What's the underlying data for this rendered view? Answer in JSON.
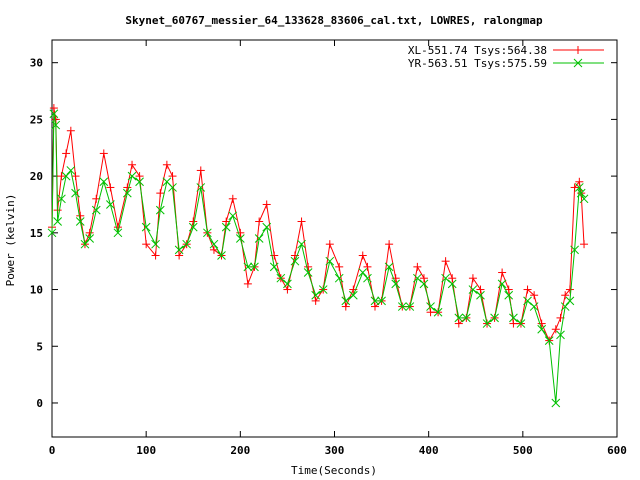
{
  "chart_data": {
    "type": "line",
    "title": "Skynet_60767_messier_64_133628_83606_cal.txt, LOWRES, ralongmap",
    "xlabel": "Time(Seconds)",
    "ylabel": "Power (kelvin)",
    "xlim": [
      0,
      600
    ],
    "ylim": [
      -3,
      32
    ],
    "xticks": [
      0,
      100,
      200,
      300,
      400,
      500,
      600
    ],
    "yticks": [
      0,
      5,
      10,
      15,
      20,
      25,
      30
    ],
    "grid": false,
    "legend_position": "top-right",
    "series": [
      {
        "name": "XL-551.74 Tsys:564.38",
        "color": "#ff0000",
        "marker": "+",
        "x": [
          0,
          2,
          4,
          6,
          10,
          15,
          20,
          25,
          30,
          35,
          40,
          47,
          55,
          62,
          70,
          80,
          85,
          93,
          100,
          110,
          115,
          122,
          128,
          135,
          143,
          150,
          158,
          165,
          172,
          180,
          185,
          192,
          200,
          208,
          215,
          220,
          228,
          236,
          243,
          250,
          258,
          265,
          272,
          280,
          288,
          295,
          305,
          312,
          320,
          330,
          335,
          343,
          350,
          358,
          365,
          372,
          380,
          388,
          395,
          402,
          410,
          418,
          425,
          432,
          440,
          447,
          455,
          462,
          470,
          478,
          485,
          490,
          498,
          505,
          512,
          520,
          528,
          535,
          540,
          545,
          550,
          555,
          560,
          562,
          565
        ],
        "values": [
          15.5,
          26,
          25,
          17,
          20,
          22,
          24,
          20,
          16.5,
          14,
          15,
          18,
          22,
          19,
          15.5,
          19,
          21,
          20,
          14,
          13,
          18.5,
          21,
          20,
          13,
          14,
          16,
          20.5,
          15,
          13.5,
          13,
          16,
          18,
          15,
          10.5,
          12,
          16,
          17.5,
          13,
          11,
          10,
          13,
          16,
          12,
          9,
          10,
          14,
          12,
          8.5,
          10,
          13,
          12,
          8.5,
          9,
          14,
          11,
          8.5,
          8.5,
          12,
          11,
          8,
          8,
          12.5,
          11,
          7,
          7.5,
          11,
          10,
          7,
          7.5,
          11.5,
          10,
          7,
          7,
          10,
          9.5,
          7,
          5.5,
          6.5,
          7.5,
          9.5,
          10,
          19,
          19.5,
          18.5,
          14
        ]
      },
      {
        "name": "YR-563.51 Tsys:575.59",
        "color": "#00c000",
        "marker": "x",
        "x": [
          0,
          2,
          4,
          6,
          10,
          15,
          20,
          25,
          30,
          35,
          40,
          47,
          55,
          62,
          70,
          80,
          85,
          93,
          100,
          110,
          115,
          122,
          128,
          135,
          143,
          150,
          158,
          165,
          172,
          180,
          185,
          192,
          200,
          208,
          215,
          220,
          228,
          236,
          243,
          250,
          258,
          265,
          272,
          280,
          288,
          295,
          305,
          312,
          320,
          330,
          335,
          343,
          350,
          358,
          365,
          372,
          380,
          388,
          395,
          402,
          410,
          418,
          425,
          432,
          440,
          447,
          455,
          462,
          470,
          478,
          485,
          490,
          498,
          505,
          512,
          520,
          528,
          535,
          540,
          545,
          550,
          555,
          560,
          562,
          565
        ],
        "values": [
          15,
          25.5,
          24.5,
          16,
          18,
          20,
          20.5,
          18.5,
          16,
          14,
          14.5,
          17,
          19.5,
          17.5,
          15,
          18.5,
          20,
          19.5,
          15.5,
          14,
          17,
          19.5,
          19,
          13.5,
          14,
          15.5,
          19,
          15,
          14,
          13,
          15.5,
          16.5,
          14.5,
          12,
          12,
          14.5,
          15.5,
          12,
          11,
          10.5,
          12.5,
          14,
          11.5,
          9.5,
          10,
          12.5,
          11,
          9,
          9.5,
          11.5,
          11,
          9,
          9,
          12,
          10.5,
          8.5,
          8.5,
          11,
          10.5,
          8.5,
          8,
          11,
          10.5,
          7.5,
          7.5,
          10,
          9.5,
          7,
          7.5,
          10.5,
          9.5,
          7.5,
          7,
          9,
          8.5,
          6.5,
          5.5,
          0,
          6,
          8.5,
          9,
          13.5,
          19,
          18.5,
          18
        ]
      }
    ]
  }
}
